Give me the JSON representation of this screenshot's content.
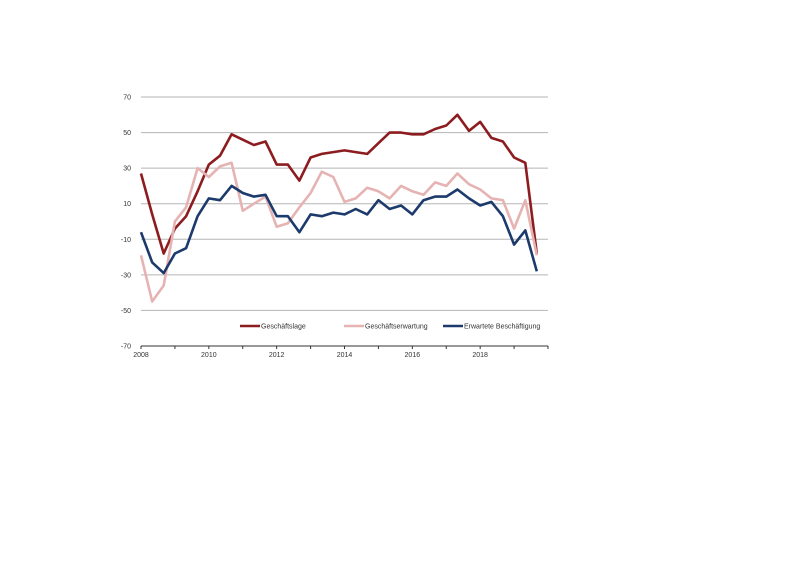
{
  "chart_data": {
    "type": "line",
    "title": "",
    "xlabel": "",
    "ylabel": "",
    "xlim": [
      2008,
      2020
    ],
    "ylim": [
      -70,
      70
    ],
    "grid": true,
    "legend_position": "bottom-inside",
    "x_ticks": [
      "2008",
      "2010",
      "2012",
      "2014",
      "2016",
      "2018"
    ],
    "x_tick_values": [
      2008,
      2010,
      2012,
      2014,
      2016,
      2018
    ],
    "y_ticks": [
      "70",
      "50",
      "30",
      "10",
      "-10",
      "-30",
      "-50",
      "-70"
    ],
    "y_tick_values": [
      70,
      50,
      30,
      10,
      -10,
      -30,
      -50,
      -70
    ],
    "x": [
      2008.0,
      2008.33,
      2008.67,
      2009.0,
      2009.33,
      2009.67,
      2010.0,
      2010.33,
      2010.67,
      2011.0,
      2011.33,
      2011.67,
      2012.0,
      2012.33,
      2012.67,
      2013.0,
      2013.33,
      2013.67,
      2014.0,
      2014.33,
      2014.67,
      2015.0,
      2015.33,
      2015.67,
      2016.0,
      2016.33,
      2016.67,
      2017.0,
      2017.33,
      2017.67,
      2018.0,
      2018.33,
      2018.67,
      2019.0,
      2019.33,
      2019.67
    ],
    "series": [
      {
        "name": "Geschäftslage",
        "color": "#8c1c1f",
        "values": [
          27,
          4,
          -18,
          -4,
          3,
          17,
          32,
          37,
          49,
          46,
          43,
          45,
          32,
          32,
          23,
          36,
          38,
          39,
          40,
          39,
          38,
          44,
          50,
          50,
          49,
          49,
          52,
          54,
          60,
          51,
          56,
          47,
          45,
          36,
          33,
          -18
        ]
      },
      {
        "name": "Geschäftserwartung",
        "color": "#e6b3b3",
        "values": [
          -19,
          -45,
          -36,
          0,
          8,
          30,
          25,
          31,
          33,
          6,
          10,
          14,
          -3,
          -1,
          8,
          16,
          28,
          25,
          11,
          13,
          19,
          17,
          13,
          20,
          17,
          15,
          22,
          20,
          27,
          21,
          18,
          13,
          12,
          -4,
          12,
          -19
        ]
      },
      {
        "name": "Erwartete Beschäftigung",
        "color": "#1c3a6b",
        "values": [
          -6,
          -23,
          -29,
          -18,
          -15,
          3,
          13,
          12,
          20,
          16,
          14,
          15,
          3,
          3,
          -6,
          4,
          3,
          5,
          4,
          7,
          4,
          12,
          7,
          9,
          4,
          12,
          14,
          14,
          18,
          13,
          9,
          11,
          3,
          -13,
          -5,
          -28
        ]
      }
    ]
  }
}
